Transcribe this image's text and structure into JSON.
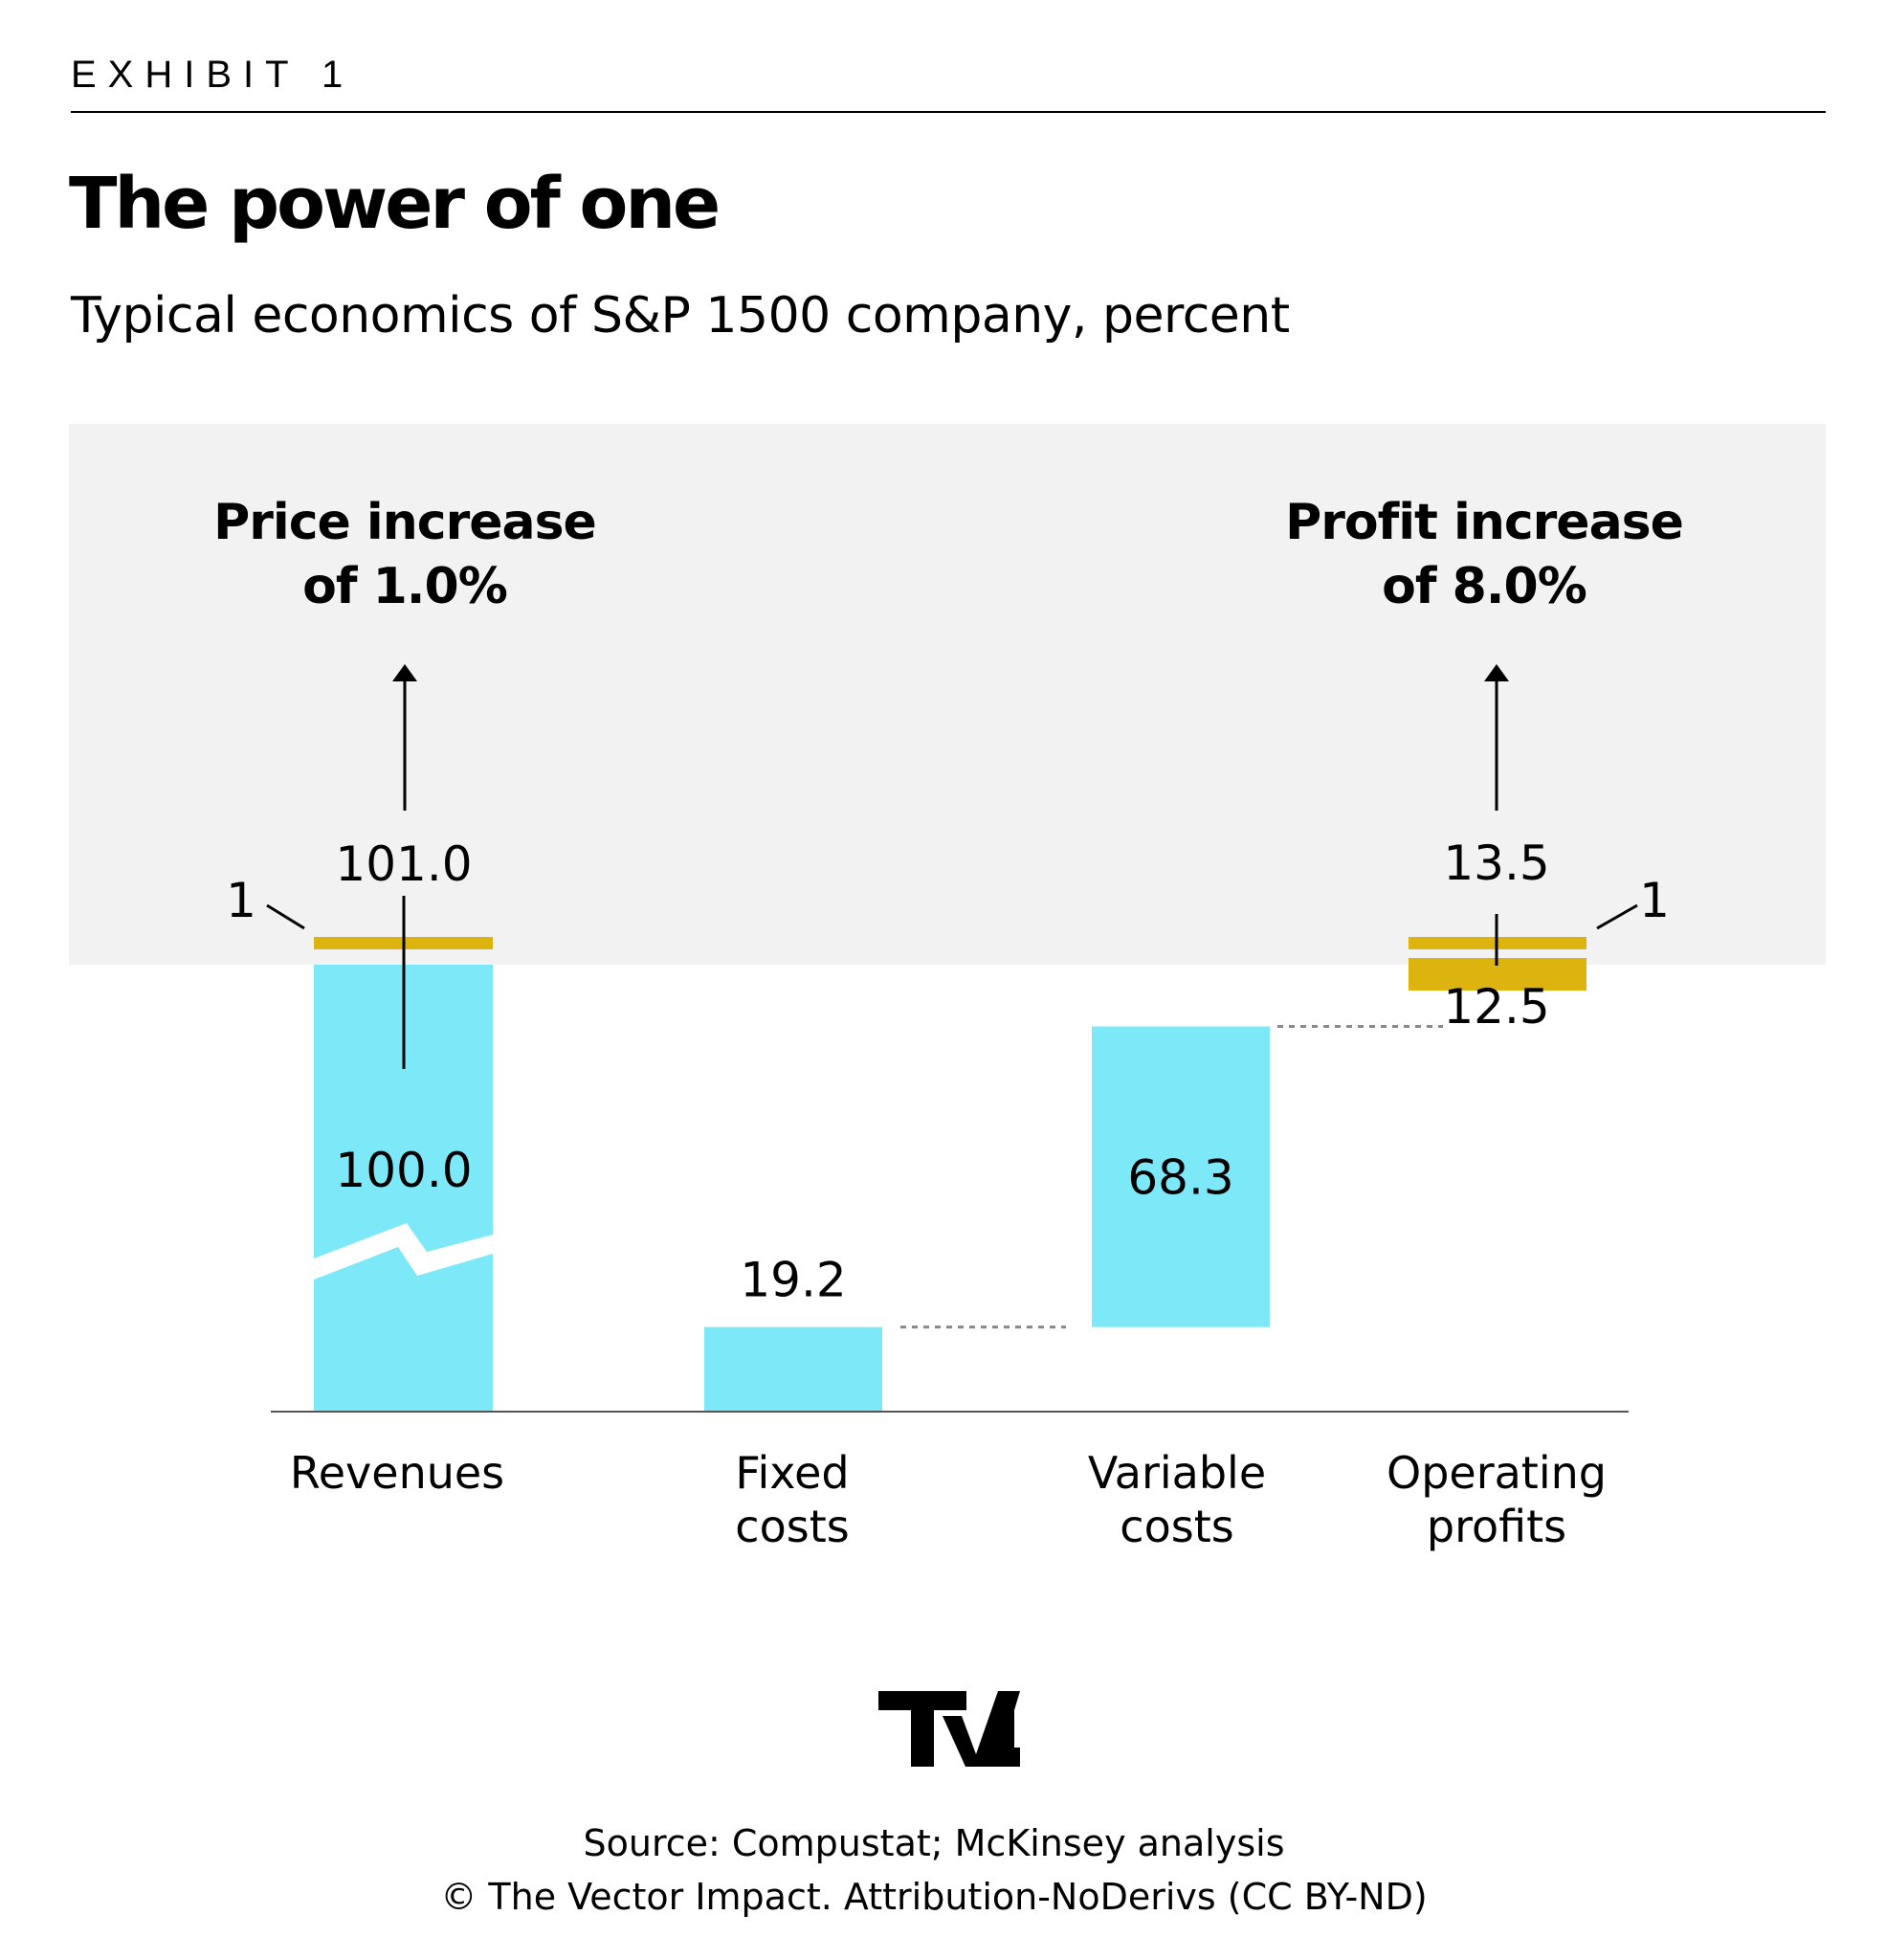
{
  "header": {
    "exhibit": "EXHIBIT 1",
    "title": "The power of one",
    "subtitle": "Typical economics of S&P 1500 company, percent"
  },
  "chart_data": {
    "type": "waterfall",
    "categories": [
      "Revenues",
      "Fixed costs",
      "Variable costs",
      "Operating profits"
    ],
    "category_lines": [
      [
        "Revenues"
      ],
      [
        "Fixed",
        "costs"
      ],
      [
        "Variable",
        "costs"
      ],
      [
        "Operating",
        "profits"
      ]
    ],
    "base_values": [
      100.0,
      19.2,
      68.3,
      12.5
    ],
    "base_labels": [
      "100.0",
      "19.2",
      "68.3",
      "12.5"
    ],
    "increase": {
      "value": 1,
      "label": "1"
    },
    "after_values": {
      "revenues": 101.0,
      "operating_profits": 13.5
    },
    "after_labels": {
      "revenues": "101.0",
      "operating_profits": "13.5"
    },
    "callouts": {
      "price": [
        "Price increase",
        "of 1.0%"
      ],
      "profit": [
        "Profit increase",
        "of 8.0%"
      ]
    },
    "revenue_axis_break": true,
    "colors": {
      "base": "#7de8f8",
      "increase": "#ddb40f",
      "highlight_panel": "#f2f2f2",
      "connector": "#888888"
    }
  },
  "logo": {
    "text": "TVI"
  },
  "footer": {
    "source": "Source: Compustat; McKinsey analysis",
    "copyright": "© The Vector Impact. Attribution-NoDerivs (CC BY-ND)"
  }
}
